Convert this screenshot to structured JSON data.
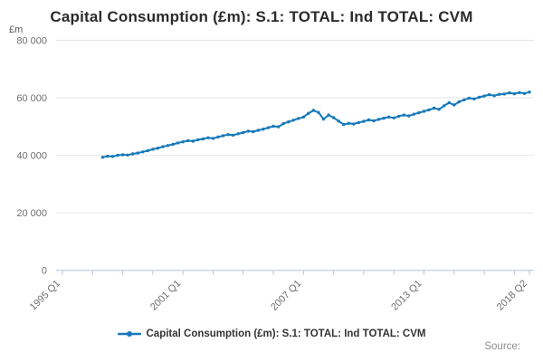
{
  "title": "Capital Consumption (£m): S.1: TOTAL: Ind TOTAL: CVM",
  "y_axis_unit": "£m",
  "source_label": "Source:",
  "legend": {
    "series_label": "Capital Consumption (£m): S.1: TOTAL: Ind TOTAL: CVM"
  },
  "colors": {
    "series": "#1779ba",
    "grid": "#e6e6e6",
    "axis": "#b6c4de",
    "tick_label": "#6f6f6f",
    "title": "#2b2b2b",
    "legend_text": "#333333",
    "source": "#8c8c8c"
  },
  "chart_data": {
    "type": "line",
    "title": "Capital Consumption (£m): S.1: TOTAL: Ind TOTAL: CVM",
    "ylabel": "£m",
    "frequency": "quarterly",
    "grid": "horizontal",
    "legend_position": "bottom",
    "x_axis": {
      "axis_start_label": "1995 Q1",
      "tick_labels": [
        "1995 Q1",
        "2001 Q1",
        "2007 Q1",
        "2013 Q1",
        "2018 Q2"
      ],
      "tick_quarter_offsets": [
        0,
        24,
        48,
        72,
        93
      ],
      "minor_tick_every_quarters": 6,
      "total_quarters": 93,
      "label_rotation_deg": -45
    },
    "y_axis": {
      "min": 0,
      "max": 80000,
      "tick_values": [
        0,
        20000,
        40000,
        60000,
        80000
      ],
      "tick_labels": [
        "0",
        "20 000",
        "40 000",
        "60 000",
        "80 000"
      ]
    },
    "series": [
      {
        "name": "Capital Consumption (£m): S.1: TOTAL: Ind TOTAL: CVM",
        "x_start": "1997 Q1",
        "x_end": "2018 Q2",
        "start_quarter_offset": 8,
        "values": [
          39300,
          39700,
          39600,
          40000,
          40200,
          40100,
          40500,
          40800,
          41200,
          41600,
          42100,
          42500,
          43000,
          43400,
          43800,
          44300,
          44700,
          45100,
          44900,
          45400,
          45700,
          46100,
          45900,
          46400,
          46800,
          47200,
          47000,
          47500,
          47900,
          48400,
          48200,
          48700,
          49100,
          49600,
          50100,
          49900,
          51000,
          51600,
          52200,
          52800,
          53300,
          54600,
          55600,
          54900,
          52600,
          54000,
          53100,
          51900,
          50700,
          51100,
          50900,
          51400,
          51800,
          52300,
          52000,
          52500,
          52900,
          53300,
          53000,
          53600,
          54000,
          53700,
          54300,
          54800,
          55300,
          55800,
          56400,
          56000,
          57200,
          58300,
          57500,
          58600,
          59300,
          59900,
          59600,
          60200,
          60600,
          61100,
          60700,
          61200,
          61300,
          61700,
          61400,
          61800,
          61500,
          62000
        ]
      }
    ]
  }
}
